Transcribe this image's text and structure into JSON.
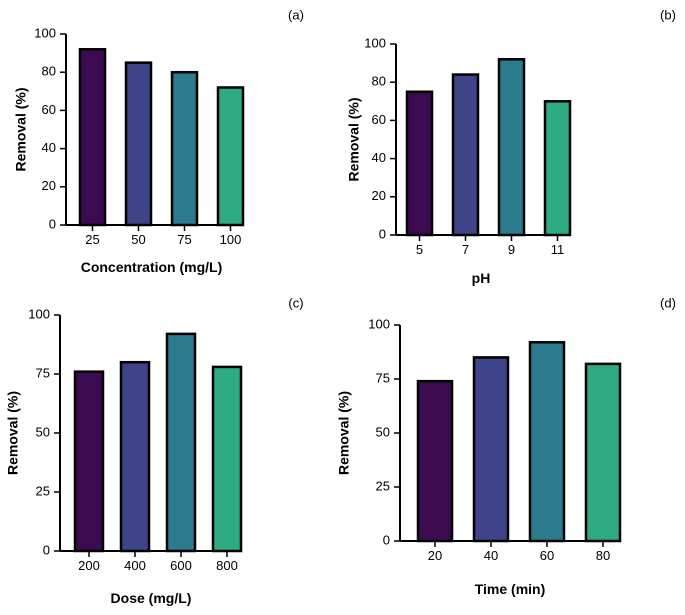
{
  "chart_data": [
    {
      "panel": "(a)",
      "type": "bar",
      "categories": [
        "25",
        "50",
        "75",
        "100"
      ],
      "values": [
        92,
        85,
        80,
        72
      ],
      "xlabel": "Concentration (mg/L)",
      "ylabel": "Removal (%)",
      "ylim": [
        0,
        100
      ],
      "yticks": [
        0,
        20,
        40,
        60,
        80,
        100
      ],
      "colors": [
        "#3b0a4f",
        "#3f4488",
        "#2c7a8e",
        "#2eaa85"
      ]
    },
    {
      "panel": "(b)",
      "type": "bar",
      "categories": [
        "5",
        "7",
        "9",
        "11"
      ],
      "values": [
        75,
        84,
        92,
        70
      ],
      "xlabel": "pH",
      "ylabel": "Removal (%)",
      "ylim": [
        0,
        100
      ],
      "yticks": [
        0,
        20,
        40,
        60,
        80,
        100
      ],
      "colors": [
        "#3b0a4f",
        "#3f4488",
        "#2c7a8e",
        "#2eaa85"
      ]
    },
    {
      "panel": "(c)",
      "type": "bar",
      "categories": [
        "200",
        "400",
        "600",
        "800"
      ],
      "values": [
        76,
        80,
        92,
        78
      ],
      "xlabel": "Dose (mg/L)",
      "ylabel": "Removal (%)",
      "ylim": [
        0,
        100
      ],
      "yticks": [
        0,
        25,
        50,
        75,
        100
      ],
      "colors": [
        "#3b0a4f",
        "#3f4488",
        "#2c7a8e",
        "#2eaa85"
      ]
    },
    {
      "panel": "(d)",
      "type": "bar",
      "categories": [
        "20",
        "40",
        "60",
        "80"
      ],
      "values": [
        74,
        85,
        92,
        82
      ],
      "xlabel": "Time (min)",
      "ylabel": "Removal (%)",
      "ylim": [
        0,
        100
      ],
      "yticks": [
        0,
        25,
        50,
        75,
        100
      ],
      "colors": [
        "#3b0a4f",
        "#3f4488",
        "#2c7a8e",
        "#2eaa85"
      ]
    }
  ]
}
